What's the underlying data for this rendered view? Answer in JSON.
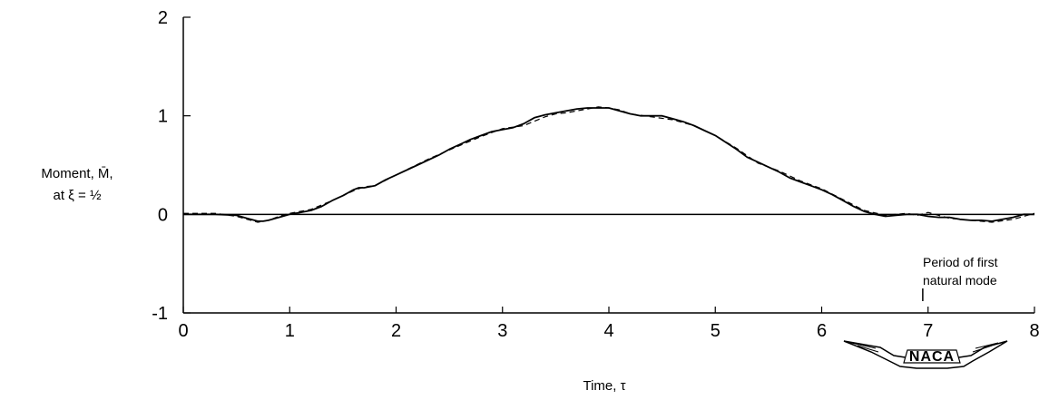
{
  "chart_data": {
    "type": "line",
    "title": "",
    "xlabel": "Time, τ",
    "ylabel_line1": "Moment, M̄,",
    "ylabel_line2": "at ξ = ½",
    "xlim": [
      0,
      8
    ],
    "ylim": [
      -1,
      2
    ],
    "x_ticks": [
      0,
      1,
      2,
      3,
      4,
      5,
      6,
      7,
      8
    ],
    "x_tick_labels": [
      "0",
      "1",
      "2",
      "3",
      "4",
      "5",
      "6",
      "7",
      "8"
    ],
    "y_ticks": [
      -1,
      0,
      1,
      2
    ],
    "y_tick_labels": [
      "-1",
      "0",
      "1",
      "2"
    ],
    "grid": false,
    "reference_line_y": 0,
    "series": [
      {
        "style": "solid",
        "color": "#000000",
        "x": [
          0,
          0.3,
          0.5,
          0.6,
          0.7,
          0.75,
          0.8,
          0.9,
          1.0,
          1.1,
          1.2,
          1.3,
          1.4,
          1.5,
          1.6,
          1.65,
          1.7,
          1.8,
          1.9,
          2.0,
          2.2,
          2.4,
          2.5,
          2.6,
          2.7,
          2.8,
          2.9,
          3.0,
          3.1,
          3.2,
          3.3,
          3.4,
          3.5,
          3.6,
          3.7,
          3.8,
          3.9,
          4.0,
          4.1,
          4.2,
          4.3,
          4.4,
          4.5,
          4.6,
          4.7,
          4.8,
          4.9,
          5.0,
          5.1,
          5.2,
          5.3,
          5.4,
          5.5,
          5.6,
          5.7,
          5.8,
          5.9,
          6.0,
          6.1,
          6.2,
          6.3,
          6.4,
          6.5,
          6.6,
          6.7,
          6.8,
          6.9,
          7.0,
          7.1,
          7.2,
          7.3,
          7.4,
          7.5,
          7.6,
          7.7,
          7.8,
          7.9,
          8.0
        ],
        "y": [
          0,
          0,
          -0.01,
          -0.04,
          -0.07,
          -0.07,
          -0.06,
          -0.03,
          0,
          0.02,
          0.04,
          0.08,
          0.14,
          0.19,
          0.25,
          0.27,
          0.27,
          0.29,
          0.35,
          0.4,
          0.5,
          0.6,
          0.66,
          0.71,
          0.76,
          0.8,
          0.84,
          0.86,
          0.88,
          0.92,
          0.98,
          1.01,
          1.03,
          1.05,
          1.07,
          1.08,
          1.08,
          1.08,
          1.05,
          1.02,
          1.0,
          1.0,
          1.0,
          0.97,
          0.94,
          0.9,
          0.85,
          0.8,
          0.73,
          0.66,
          0.58,
          0.53,
          0.48,
          0.43,
          0.37,
          0.33,
          0.29,
          0.25,
          0.2,
          0.14,
          0.08,
          0.03,
          0,
          -0.02,
          -0.01,
          0,
          0,
          -0.02,
          -0.03,
          -0.03,
          -0.05,
          -0.06,
          -0.06,
          -0.07,
          -0.05,
          -0.03,
          0,
          0
        ]
      },
      {
        "style": "dashed",
        "color": "#000000",
        "x": [
          0,
          0.3,
          0.5,
          0.6,
          0.7,
          0.8,
          0.9,
          1.0,
          1.2,
          1.4,
          1.6,
          1.7,
          1.8,
          2.0,
          2.3,
          2.6,
          2.8,
          3.0,
          3.2,
          3.4,
          3.5,
          3.6,
          3.7,
          3.8,
          3.9,
          4.0,
          4.1,
          4.2,
          4.4,
          4.6,
          4.8,
          5.0,
          5.2,
          5.4,
          5.6,
          5.8,
          6.0,
          6.2,
          6.4,
          6.6,
          6.8,
          6.9,
          7.0,
          7.2,
          7.4,
          7.6,
          7.8,
          8.0
        ],
        "y": [
          0.01,
          0.01,
          -0.02,
          -0.05,
          -0.08,
          -0.06,
          -0.02,
          0.01,
          0.05,
          0.14,
          0.24,
          0.28,
          0.29,
          0.4,
          0.56,
          0.7,
          0.79,
          0.87,
          0.9,
          0.99,
          1.02,
          1.03,
          1.05,
          1.07,
          1.09,
          1.08,
          1.06,
          1.02,
          0.99,
          0.96,
          0.9,
          0.8,
          0.67,
          0.52,
          0.44,
          0.34,
          0.26,
          0.15,
          0.04,
          -0.01,
          0.01,
          -0.01,
          0.02,
          -0.04,
          -0.06,
          -0.08,
          -0.05,
          0.01
        ]
      }
    ],
    "annotations": [
      {
        "text_line1": "Period of first",
        "text_line2": "natural mode",
        "x_marker": 6.95
      }
    ],
    "logo_text": "NACA"
  }
}
